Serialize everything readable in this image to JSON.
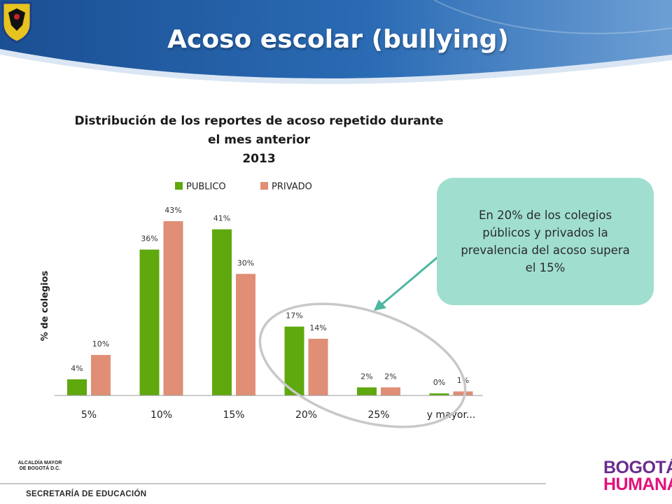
{
  "slide": {
    "title": "Acoso escolar (bullying)",
    "footer": "SECRETARÍA DE EDUCACIÓN",
    "logo_left_text": [
      "ALCALDÍA MAYOR",
      "DE BOGOTÁ D.C."
    ],
    "logo_right_text": [
      "BOGOTÁ",
      "HUMANA"
    ]
  },
  "callout": {
    "text": "En 20% de los colegios públicos y privados la prevalencia del acoso supera  el 15%"
  },
  "colors": {
    "banner": "#1f5fa8",
    "publico": "#5fa80e",
    "privado": "#e08e75",
    "callout_bg": "#a0dfcf",
    "arrow": "#4db7a0",
    "ellipse": "#c8c8c8"
  },
  "chart_data": {
    "type": "bar",
    "title": [
      "Distribución de los reportes de acoso repetido durante",
      "el mes anterior",
      "2013"
    ],
    "xlabel": "",
    "ylabel": "% de colegios",
    "categories": [
      "5%",
      "10%",
      "15%",
      "20%",
      "25%",
      "y mayor..."
    ],
    "series": [
      {
        "name": "PUBLICO",
        "color": "#5fa80e",
        "values": [
          4,
          36,
          41,
          17,
          2,
          0
        ],
        "labels": [
          "4%",
          "36%",
          "41%",
          "17%",
          "2%",
          "0%"
        ]
      },
      {
        "name": "PRIVADO",
        "color": "#e08e75",
        "values": [
          10,
          43,
          30,
          14,
          2,
          1
        ],
        "labels": [
          "10%",
          "43%",
          "30%",
          "14%",
          "2%",
          "1%"
        ]
      }
    ],
    "ylim": [
      0,
      43
    ],
    "grid": false,
    "legend": "top"
  }
}
